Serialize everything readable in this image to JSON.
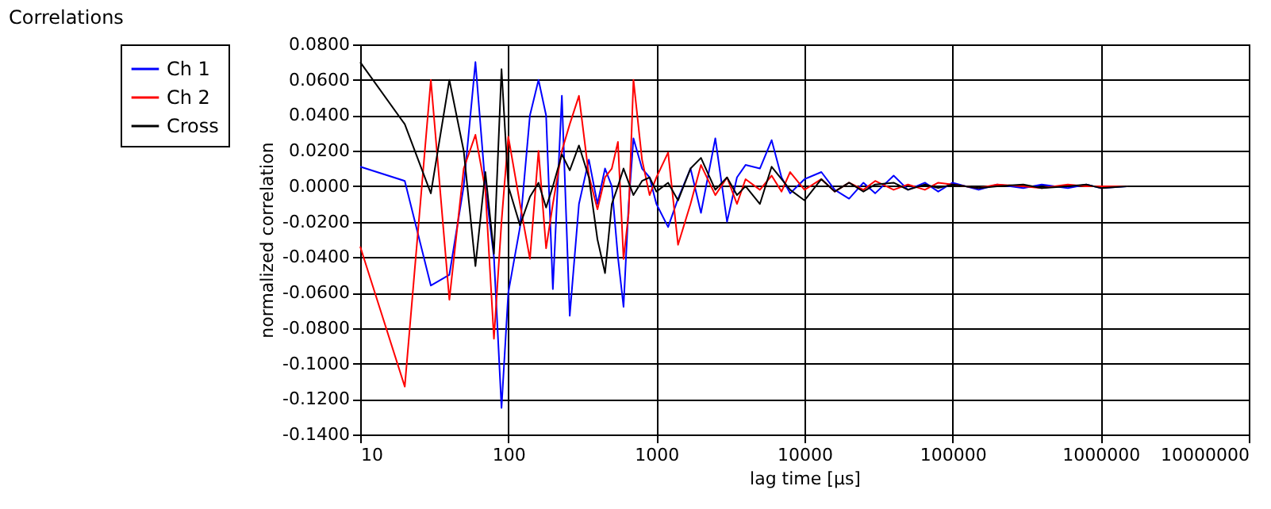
{
  "chart_data": {
    "type": "line",
    "title": "Correlations",
    "xlabel": "lag time [µs]",
    "ylabel": "normalized correlation",
    "x": [
      10,
      20,
      30,
      40,
      50,
      60,
      70,
      80,
      90,
      100,
      120,
      140,
      160,
      180,
      200,
      230,
      260,
      300,
      350,
      400,
      450,
      500,
      550,
      600,
      650,
      700,
      800,
      900,
      1000,
      1200,
      1400,
      1700,
      2000,
      2500,
      3000,
      3500,
      4000,
      5000,
      6000,
      7000,
      8000,
      10000,
      13000,
      16000,
      20000,
      25000,
      30000,
      40000,
      50000,
      65000,
      80000,
      100000,
      150000,
      200000,
      300000,
      400000,
      600000,
      800000,
      1000000,
      1500000
    ],
    "series": [
      {
        "name": "Ch 1",
        "color": "#0000ff",
        "values": [
          0.011,
          0.003,
          -0.056,
          -0.05,
          0.0,
          0.07,
          0.0,
          -0.04,
          -0.125,
          -0.06,
          -0.023,
          0.04,
          0.06,
          0.04,
          -0.058,
          0.051,
          -0.073,
          -0.01,
          0.015,
          -0.01,
          0.01,
          0.0,
          -0.04,
          -0.068,
          -0.01,
          0.027,
          0.01,
          0.005,
          -0.01,
          -0.023,
          -0.007,
          0.01,
          -0.015,
          0.027,
          -0.02,
          0.005,
          0.012,
          0.01,
          0.026,
          0.005,
          -0.004,
          0.004,
          0.008,
          -0.002,
          -0.007,
          0.002,
          -0.004,
          0.006,
          -0.002,
          0.002,
          -0.003,
          0.002,
          -0.002,
          0.001,
          -0.001,
          0.001,
          -0.001,
          0.001,
          -0.001,
          0.0
        ]
      },
      {
        "name": "Ch 2",
        "color": "#ff0000",
        "values": [
          -0.034,
          -0.113,
          0.06,
          -0.064,
          0.01,
          0.029,
          -0.002,
          -0.086,
          -0.02,
          0.028,
          -0.01,
          -0.041,
          0.02,
          -0.035,
          -0.01,
          0.02,
          0.035,
          0.051,
          0.006,
          -0.013,
          0.005,
          0.01,
          0.025,
          -0.041,
          -0.015,
          0.06,
          0.015,
          -0.005,
          0.005,
          0.019,
          -0.033,
          -0.01,
          0.012,
          -0.005,
          0.005,
          -0.01,
          0.004,
          -0.002,
          0.006,
          -0.003,
          0.008,
          -0.002,
          0.004,
          -0.003,
          0.002,
          -0.002,
          0.003,
          -0.002,
          0.001,
          -0.002,
          0.002,
          0.001,
          -0.001,
          0.001,
          0.0,
          -0.001,
          0.001,
          0.0,
          0.0,
          0.0
        ]
      },
      {
        "name": "Cross",
        "color": "#000000",
        "values": [
          0.07,
          0.035,
          -0.004,
          0.06,
          0.02,
          -0.045,
          0.008,
          -0.038,
          0.066,
          0.0,
          -0.022,
          -0.006,
          0.002,
          -0.012,
          0.0,
          0.018,
          0.009,
          0.023,
          0.005,
          -0.03,
          -0.049,
          -0.01,
          0.0,
          0.01,
          0.002,
          -0.005,
          0.003,
          0.005,
          -0.003,
          0.002,
          -0.008,
          0.01,
          0.016,
          -0.002,
          0.005,
          -0.005,
          0.0,
          -0.01,
          0.011,
          0.004,
          -0.002,
          -0.008,
          0.004,
          -0.003,
          0.002,
          -0.003,
          0.001,
          0.002,
          -0.002,
          0.001,
          -0.001,
          0.001,
          -0.001,
          0.0,
          0.001,
          -0.001,
          0.0,
          0.001,
          -0.001,
          0.0
        ]
      }
    ],
    "log": "x",
    "xlim": [
      10,
      10000000
    ],
    "xticks": [
      10,
      100,
      1000,
      10000,
      100000,
      1000000,
      10000000
    ],
    "ylim": [
      -0.14,
      0.08
    ],
    "yticks": [
      {
        "value": -0.14,
        "label": "-0.1400"
      },
      {
        "value": -0.12,
        "label": "-0.1200"
      },
      {
        "value": -0.1,
        "label": "-0.1000"
      },
      {
        "value": -0.08,
        "label": "-0.0800"
      },
      {
        "value": -0.06,
        "label": "-0.0600"
      },
      {
        "value": -0.04,
        "label": "-0.0400"
      },
      {
        "value": -0.02,
        "label": "-0.0200"
      },
      {
        "value": 0,
        "label": "0.0000"
      },
      {
        "value": 0.02,
        "label": "0.0200"
      },
      {
        "value": 0.04,
        "label": "0.0400"
      },
      {
        "value": 0.06,
        "label": "0.0600"
      },
      {
        "value": 0.08,
        "label": "0.0800"
      }
    ],
    "grid": true,
    "legend": "top left",
    "marker": "none",
    "line_style": "solid"
  }
}
